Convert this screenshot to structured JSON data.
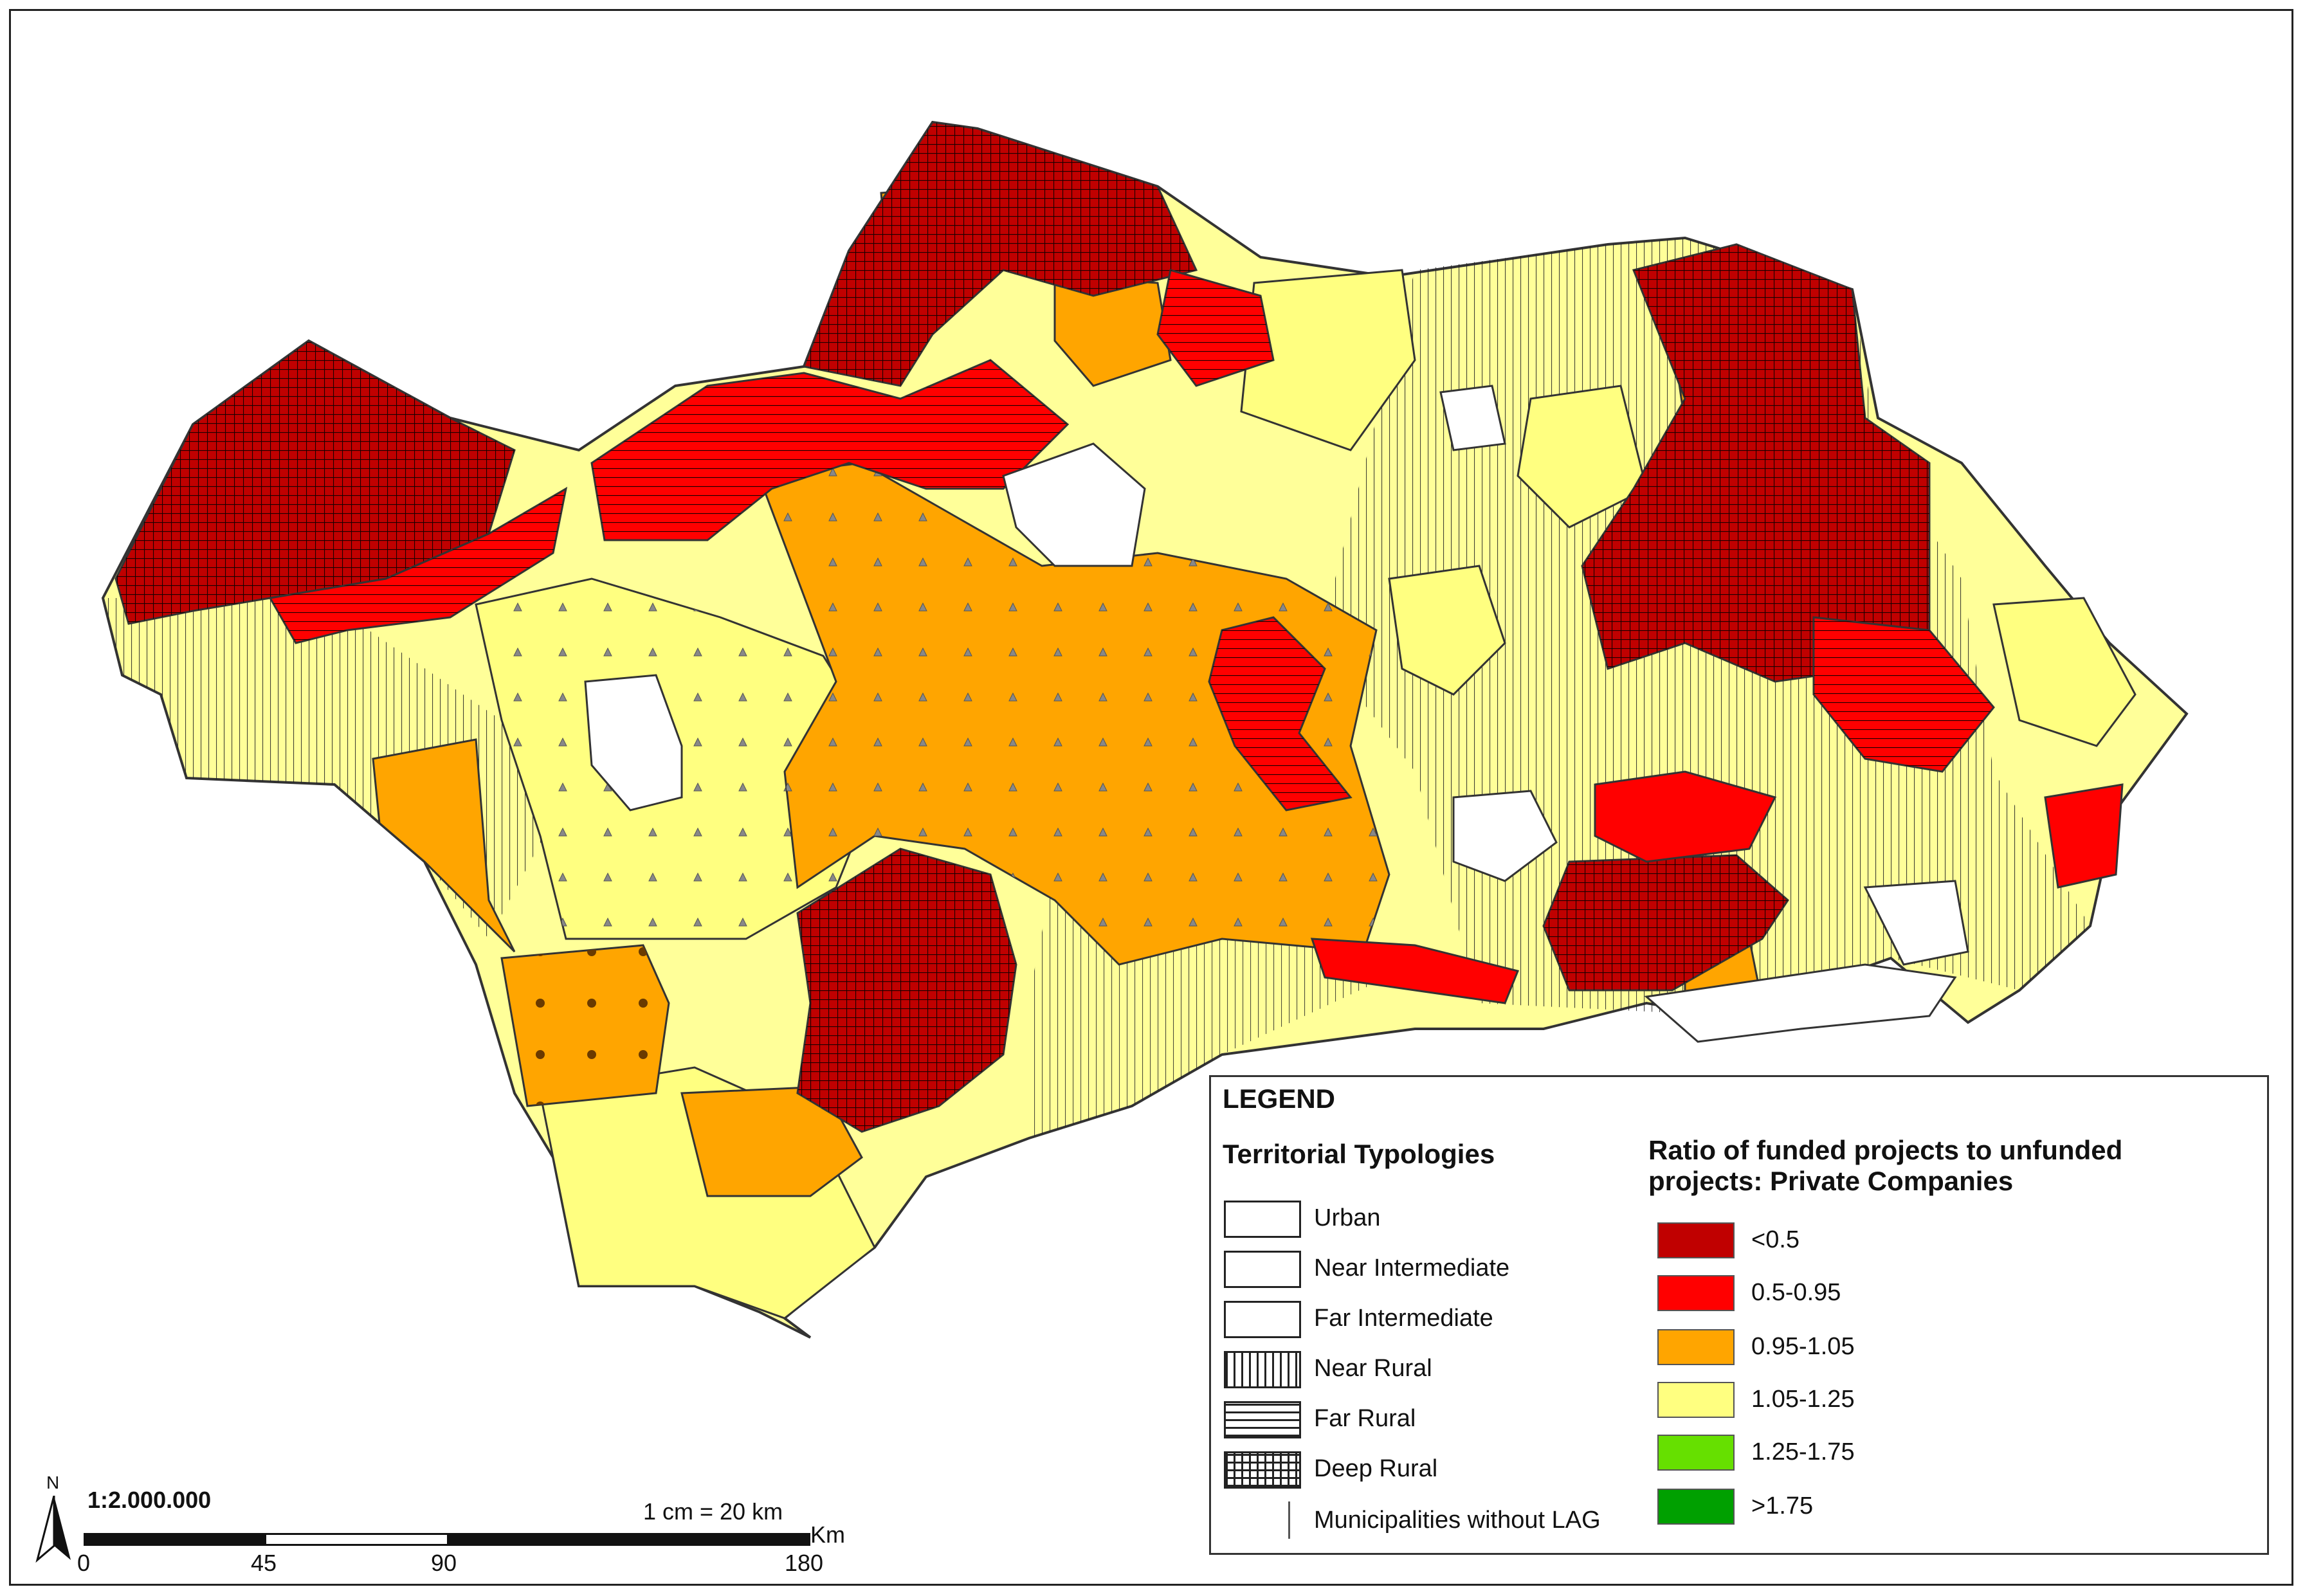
{
  "colors": {
    "class_lt_0_5": "#c00000",
    "class_0_5_0_95": "#ff0000",
    "class_0_95_1_05": "#ffa500",
    "class_1_05_1_25": "#ffff80",
    "class_1_25_1_75": "#66e000",
    "class_gt_1_75": "#00a000",
    "no_lag": "#ffffff"
  },
  "legend": {
    "title": "LEGEND",
    "typologies_title": "Territorial Typologies",
    "typologies": [
      {
        "label": "Urban",
        "pattern": "urban"
      },
      {
        "label": "Near Intermediate",
        "pattern": "near-intermediate"
      },
      {
        "label": "Far Intermediate",
        "pattern": "far-intermediate"
      },
      {
        "label": "Near Rural",
        "pattern": "vertical-lines"
      },
      {
        "label": "Far Rural",
        "pattern": "horizontal-lines"
      },
      {
        "label": "Deep Rural",
        "pattern": "grid"
      },
      {
        "label": "Municipalities without LAG",
        "pattern": "none"
      }
    ],
    "ratio_title_line1": "Ratio of funded projects to  unfunded",
    "ratio_title_line2": "projects: Private Companies",
    "classes": [
      {
        "label": "<0.5",
        "color": "#c00000"
      },
      {
        "label": "0.5-0.95",
        "color": "#ff0000"
      },
      {
        "label": "0.95-1.05",
        "color": "#ffa500"
      },
      {
        "label": "1.05-1.25",
        "color": "#ffff80"
      },
      {
        "label": "1.25-1.75",
        "color": "#66e000"
      },
      {
        "label": ">1.75",
        "color": "#00a000"
      }
    ]
  },
  "scale": {
    "north_label": "N",
    "ratio": "1:2.000.000",
    "conversion": "1 cm = 20 km",
    "unit": "Km",
    "ticks": [
      "0",
      "45",
      "90",
      "180"
    ]
  }
}
